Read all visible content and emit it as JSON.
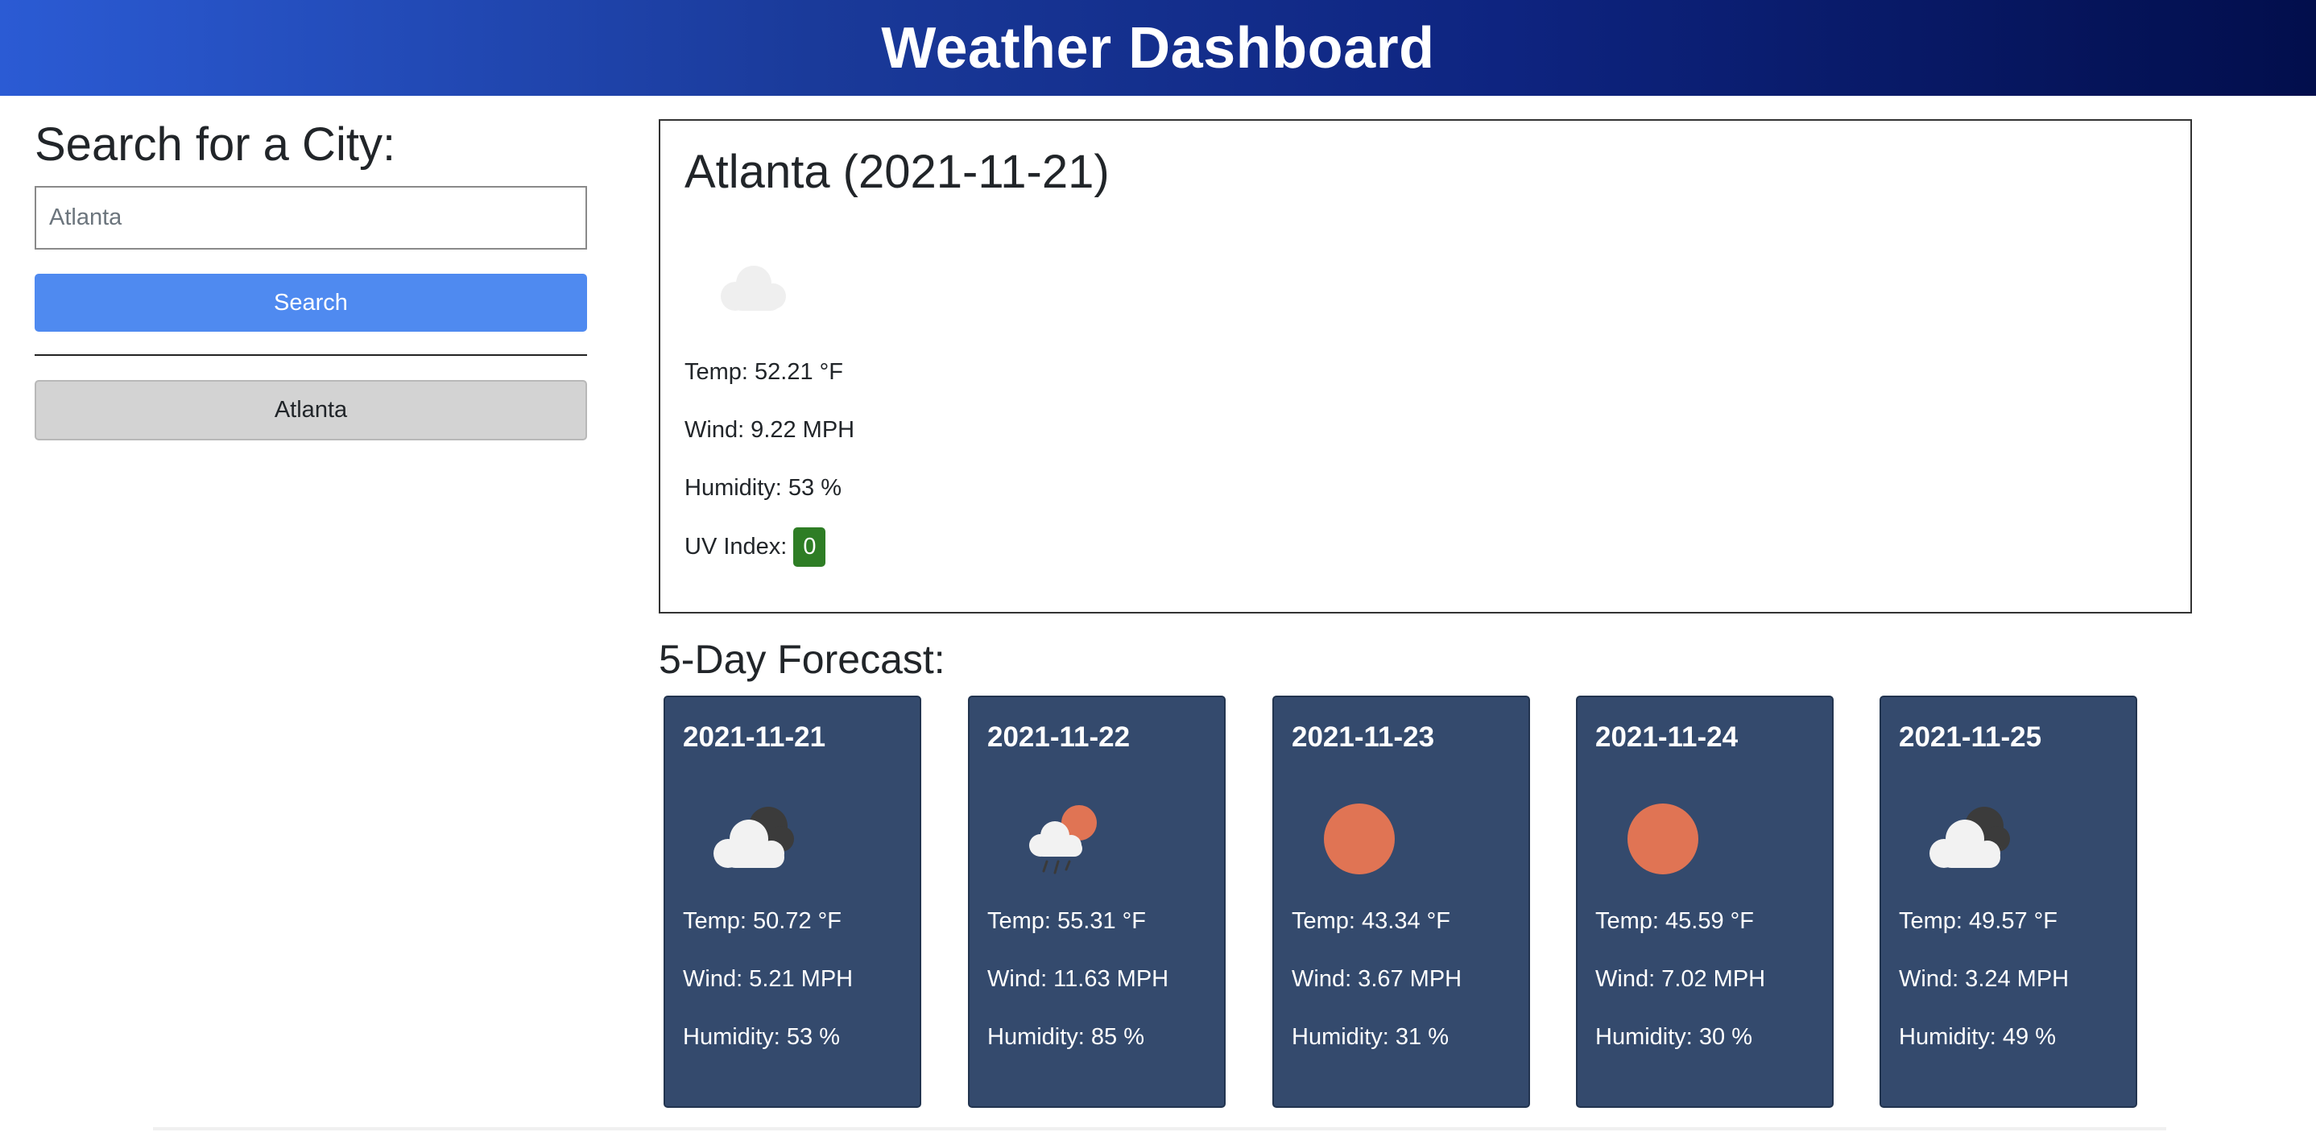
{
  "header": {
    "title": "Weather Dashboard"
  },
  "search": {
    "heading": "Search for a City:",
    "value": "Atlanta",
    "button_label": "Search"
  },
  "history": [
    "Atlanta"
  ],
  "current": {
    "title": "Atlanta (2021-11-21)",
    "icon": "cloud-icon",
    "temp": "Temp: 52.21 °F",
    "wind": "Wind: 9.22 MPH",
    "humidity": "Humidity: 53 %",
    "uv_label": "UV Index:",
    "uv_value": "0",
    "uv_color": "#2e7d25"
  },
  "forecast": {
    "heading": "5-Day Forecast:",
    "days": [
      {
        "date": "2021-11-21",
        "icon": "cloud-night-icon",
        "temp": "Temp: 50.72 °F",
        "wind": "Wind: 5.21 MPH",
        "humidity": "Humidity: 53 %"
      },
      {
        "date": "2021-11-22",
        "icon": "rain-sun-icon",
        "temp": "Temp: 55.31 °F",
        "wind": "Wind: 11.63 MPH",
        "humidity": "Humidity: 85 %"
      },
      {
        "date": "2021-11-23",
        "icon": "sun-icon",
        "temp": "Temp: 43.34 °F",
        "wind": "Wind: 3.67 MPH",
        "humidity": "Humidity: 31 %"
      },
      {
        "date": "2021-11-24",
        "icon": "sun-icon",
        "temp": "Temp: 45.59 °F",
        "wind": "Wind: 7.02 MPH",
        "humidity": "Humidity: 30 %"
      },
      {
        "date": "2021-11-25",
        "icon": "cloud-night-icon",
        "temp": "Temp: 49.57 °F",
        "wind": "Wind: 3.24 MPH",
        "humidity": "Humidity: 49 %"
      }
    ]
  },
  "colors": {
    "header_start": "#2b5bd4",
    "header_end": "#020e4c",
    "search_button": "#4f8af0",
    "history_button": "#d3d3d3",
    "forecast_card": "#344a6d",
    "sun": "#e07454"
  }
}
